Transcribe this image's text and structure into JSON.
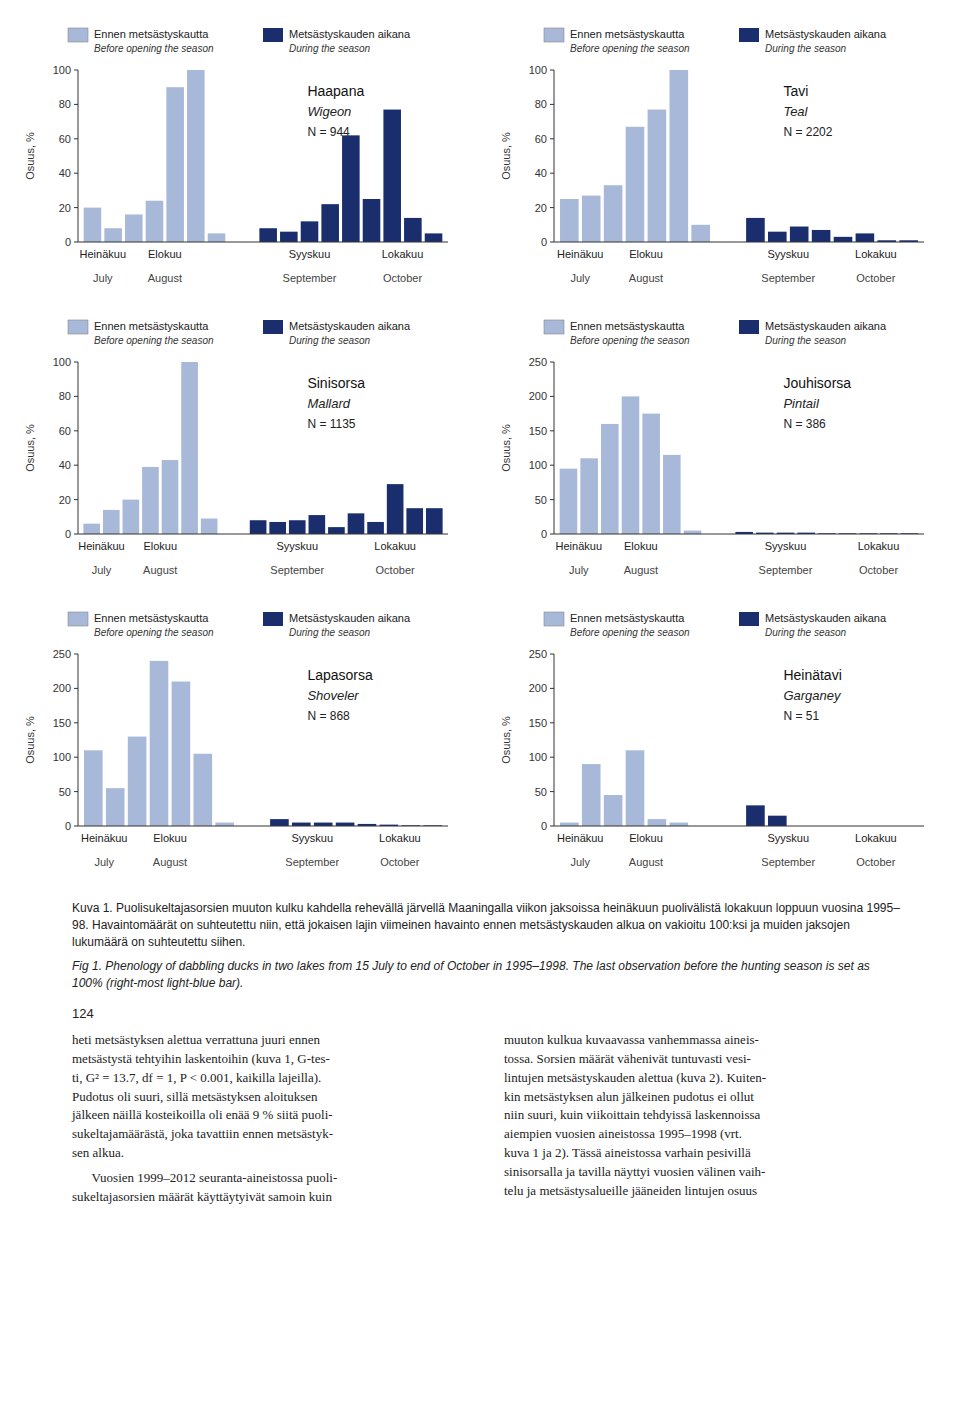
{
  "chart_data": [
    {
      "type": "bar",
      "title": "Haapana",
      "subtitle": "Wigeon",
      "annotations": [
        "N = 944"
      ],
      "categories": [
        null,
        null,
        null,
        null,
        null,
        null,
        null,
        null,
        null,
        null,
        null,
        null,
        null,
        null,
        null,
        null
      ],
      "series": [
        {
          "name": "Ennen metsästyskautta",
          "name_en": "Before opening the season",
          "color": "#a8b8d8",
          "values": [
            20,
            8,
            16,
            24,
            90,
            100,
            5,
            null,
            null,
            null,
            null,
            null,
            null,
            null,
            null,
            null
          ]
        },
        {
          "name": "Metsästyskauden aikana",
          "name_en": "During the season",
          "color": "#1a2e6e",
          "values": [
            null,
            null,
            null,
            null,
            null,
            null,
            null,
            8,
            6,
            12,
            22,
            62,
            25,
            77,
            14,
            5
          ]
        }
      ],
      "month_labels": [
        "Heinäkuu",
        "Elokuu",
        "Syyskuu",
        "Lokakuu"
      ],
      "month_labels_en": [
        "July",
        "August",
        "September",
        "October"
      ],
      "y_label": "Osuus, %",
      "ylim": [
        0,
        100
      ],
      "yticks": [
        0,
        20,
        40,
        60,
        80,
        100
      ],
      "grid": false,
      "legend": "top"
    },
    {
      "type": "bar",
      "title": "Tavi",
      "subtitle": "Teal",
      "annotations": [
        "N = 2202"
      ],
      "categories": [
        null,
        null,
        null,
        null,
        null,
        null,
        null,
        null,
        null,
        null,
        null,
        null,
        null,
        null,
        null
      ],
      "series": [
        {
          "name": "Ennen metsästyskautta",
          "name_en": "Before opening the season",
          "color": "#a8b8d8",
          "values": [
            25,
            27,
            33,
            67,
            77,
            100,
            10,
            null,
            null,
            null,
            null,
            null,
            null,
            null,
            null
          ]
        },
        {
          "name": "Metsästyskauden aikana",
          "name_en": "During the season",
          "color": "#1a2e6e",
          "values": [
            null,
            null,
            null,
            null,
            null,
            null,
            null,
            14,
            6,
            9,
            7,
            3,
            5,
            1,
            1
          ]
        }
      ],
      "month_labels": [
        "Heinäkuu",
        "Elokuu",
        "Syyskuu",
        "Lokakuu"
      ],
      "month_labels_en": [
        "July",
        "August",
        "September",
        "October"
      ],
      "y_label": "Osuus, %",
      "ylim": [
        0,
        100
      ],
      "yticks": [
        0,
        20,
        40,
        60,
        80,
        100
      ],
      "grid": false,
      "legend": "top"
    },
    {
      "type": "bar",
      "title": "Sinisorsa",
      "subtitle": "Mallard",
      "annotations": [
        "N = 1135"
      ],
      "categories": [
        null,
        null,
        null,
        null,
        null,
        null,
        null,
        null,
        null,
        null,
        null,
        null,
        null,
        null,
        null,
        null,
        null
      ],
      "series": [
        {
          "name": "Ennen metsästyskautta",
          "name_en": "Before opening the season",
          "color": "#a8b8d8",
          "values": [
            6,
            14,
            20,
            39,
            43,
            100,
            9,
            null,
            null,
            null,
            null,
            null,
            null,
            null,
            null,
            null,
            null
          ]
        },
        {
          "name": "Metsästyskauden aikana",
          "name_en": "During the season",
          "color": "#1a2e6e",
          "values": [
            null,
            null,
            null,
            null,
            null,
            null,
            null,
            8,
            7,
            8,
            11,
            4,
            12,
            7,
            29,
            15,
            15
          ]
        }
      ],
      "month_labels": [
        "Heinäkuu",
        "Elokuu",
        "Syyskuu",
        "Lokakuu"
      ],
      "month_labels_en": [
        "July",
        "August",
        "September",
        "October"
      ],
      "y_label": "Osuus, %",
      "ylim": [
        0,
        100
      ],
      "yticks": [
        0,
        20,
        40,
        60,
        80,
        100
      ],
      "grid": false,
      "legend": "top"
    },
    {
      "type": "bar",
      "title": "Jouhisorsa",
      "subtitle": "Pintail",
      "annotations": [
        "N = 386"
      ],
      "categories": [
        null,
        null,
        null,
        null,
        null,
        null,
        null,
        null,
        null,
        null,
        null,
        null,
        null,
        null,
        null,
        null
      ],
      "series": [
        {
          "name": "Ennen metsästyskautta",
          "name_en": "Before opening the season",
          "color": "#a8b8d8",
          "values": [
            95,
            110,
            160,
            200,
            175,
            115,
            5,
            null,
            null,
            null,
            null,
            null,
            null,
            null,
            null,
            null
          ]
        },
        {
          "name": "Metsästyskauden aikana",
          "name_en": "During the season",
          "color": "#1a2e6e",
          "values": [
            null,
            null,
            null,
            null,
            null,
            null,
            null,
            3,
            2,
            2,
            2,
            1,
            1,
            1,
            1,
            1
          ]
        }
      ],
      "month_labels": [
        "Heinäkuu",
        "Elokuu",
        "Syyskuu",
        "Lokakuu"
      ],
      "month_labels_en": [
        "July",
        "August",
        "September",
        "October"
      ],
      "y_label": "Osuus, %",
      "ylim": [
        0,
        250
      ],
      "yticks": [
        0,
        50,
        100,
        150,
        200,
        250
      ],
      "grid": false,
      "legend": "top"
    },
    {
      "type": "bar",
      "title": "Lapasorsa",
      "subtitle": "Shoveler",
      "annotations": [
        "N = 868"
      ],
      "categories": [
        null,
        null,
        null,
        null,
        null,
        null,
        null,
        null,
        null,
        null,
        null,
        null,
        null,
        null,
        null
      ],
      "series": [
        {
          "name": "Ennen metsästyskautta",
          "name_en": "Before opening the season",
          "color": "#a8b8d8",
          "values": [
            110,
            55,
            130,
            240,
            210,
            105,
            5,
            null,
            null,
            null,
            null,
            null,
            null,
            null,
            null
          ]
        },
        {
          "name": "Metsästyskauden aikana",
          "name_en": "During the season",
          "color": "#1a2e6e",
          "values": [
            null,
            null,
            null,
            null,
            null,
            null,
            null,
            10,
            5,
            5,
            5,
            3,
            2,
            1,
            1
          ]
        }
      ],
      "month_labels": [
        "Heinäkuu",
        "Elokuu",
        "Syyskuu",
        "Lokakuu"
      ],
      "month_labels_en": [
        "July",
        "August",
        "September",
        "October"
      ],
      "y_label": "Osuus, %",
      "ylim": [
        0,
        250
      ],
      "yticks": [
        0,
        50,
        100,
        150,
        200,
        250
      ],
      "grid": false,
      "legend": "top"
    },
    {
      "type": "bar",
      "title": "Heinätavi",
      "subtitle": "Garganey",
      "annotations": [
        "N = 51"
      ],
      "categories": [
        null,
        null,
        null,
        null,
        null,
        null,
        null,
        null,
        null,
        null,
        null,
        null,
        null,
        null,
        null
      ],
      "series": [
        {
          "name": "Ennen metsästyskautta",
          "name_en": "Before opening the season",
          "color": "#a8b8d8",
          "values": [
            5,
            90,
            45,
            110,
            10,
            5,
            0,
            null,
            null,
            null,
            null,
            null,
            null,
            null,
            null
          ]
        },
        {
          "name": "Metsästyskauden aikana",
          "name_en": "During the season",
          "color": "#1a2e6e",
          "values": [
            null,
            null,
            null,
            null,
            null,
            null,
            null,
            30,
            15,
            0,
            0,
            0,
            0,
            0,
            0
          ]
        }
      ],
      "month_labels": [
        "Heinäkuu",
        "Elokuu",
        "Syyskuu",
        "Lokakuu"
      ],
      "month_labels_en": [
        "July",
        "August",
        "September",
        "October"
      ],
      "y_label": "Osuus, %",
      "ylim": [
        0,
        250
      ],
      "yticks": [
        0,
        50,
        100,
        150,
        200,
        250
      ],
      "grid": false,
      "legend": "top"
    }
  ],
  "caption": [
    "Kuva 1. Puolisukeltajasorsien muuton kulku kahdella rehevällä järvellä Maaningalla viikon jaksoissa heinäkuun puolivälistä lokakuun loppuun vuosina 1995–98. Havaintomäärät on suhteutettu niin, että jokaisen lajin viimeinen havainto ennen metsästyskauden alkua on vakioitu 100:ksi ja muiden jaksojen lukumäärä on suhteutettu siihen.",
    "Fig 1. Phenology of dabbling ducks in two lakes from 15 July to end of October in 1995–1998. The last observation before the hunting season is set as 100% (right-most light-blue bar)."
  ],
  "page_number": "124",
  "body_text": [
    [
      [
        "heti metsästyksen alettua verrattuna juuri ennen",
        "metsästystä tehtyihin laskentoihin (kuva 1, G-tes-",
        "ti, G² = 13.7, df = 1, P < 0.001, kaikilla lajeilla).",
        "Pudotus oli suuri, sillä metsästyksen aloituksen",
        "jälkeen näillä kosteikoilla oli enää 9 % siitä puoli-",
        "sukeltajamäärästä, joka tavattiin ennen metsästyk-",
        "sen alkua."
      ],
      [
        "Vuosien 1999–2012 seuranta-aineistossa puoli-",
        "sukeltajasorsien määrät käyttäytyivät samoin kuin"
      ]
    ],
    [
      [
        "muuton kulkua kuvaavassa vanhemmassa aineis-",
        "tossa. Sorsien määrät vähenivät tuntuvasti vesi-",
        "lintujen metsästyskauden alettua (kuva 2). Kuiten-",
        "kin metsästyksen alun jälkeinen pudotus ei ollut",
        "niin suuri, kuin viikoittain tehdyissä laskennoissa",
        "aiempien vuosien aineistossa 1995–1998 (vrt.",
        "kuva 1 ja 2). Tässä aineistossa varhain pesivillä",
        "sinisorsalla ja tavilla näyttyi vuosien välinen vaih-",
        "telu ja metsästysalueille jääneiden lintujen osuus"
      ]
    ]
  ]
}
